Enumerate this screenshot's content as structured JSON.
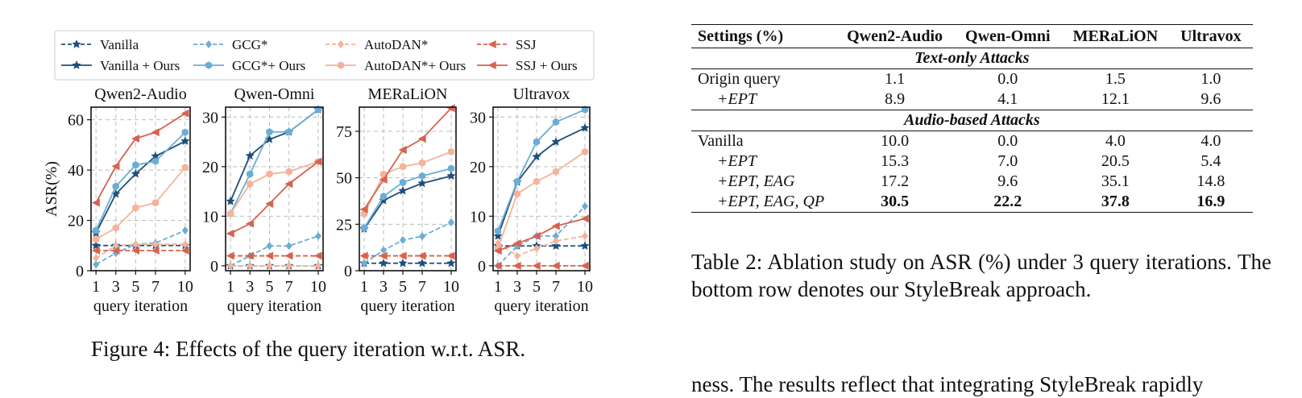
{
  "figure": {
    "caption": "Figure 4: Effects of the query iteration w.r.t. ASR.",
    "legend": [
      {
        "label": "Vanilla",
        "color": "#1f4e79",
        "dash": true,
        "marker": "star"
      },
      {
        "label": "Vanilla + Ours",
        "color": "#1f4e79",
        "dash": false,
        "marker": "star"
      },
      {
        "label": "GCG*",
        "color": "#6aaed6",
        "dash": true,
        "marker": "diamond"
      },
      {
        "label": "GCG*+ Ours",
        "color": "#6aaed6",
        "dash": false,
        "marker": "hex"
      },
      {
        "label": "AutoDAN*",
        "color": "#f4b39a",
        "dash": true,
        "marker": "diamond"
      },
      {
        "label": "AutoDAN*+ Ours",
        "color": "#f4b39a",
        "dash": false,
        "marker": "hex"
      },
      {
        "label": "SSJ",
        "color": "#d66350",
        "dash": true,
        "marker": "tri"
      },
      {
        "label": "SSJ + Ours",
        "color": "#d66350",
        "dash": false,
        "marker": "tri"
      }
    ]
  },
  "chart_data": [
    {
      "type": "line",
      "title": "Qwen2-Audio",
      "xlabel": "query iteration",
      "ylabel": "ASR(%)",
      "x": [
        1,
        3,
        5,
        7,
        10
      ],
      "ylim": [
        0,
        65
      ],
      "yticks": [
        0,
        20,
        40,
        60
      ],
      "grid": true,
      "series": [
        {
          "name": "Vanilla",
          "values": [
            10,
            10,
            10,
            10,
            10
          ]
        },
        {
          "name": "Vanilla + Ours",
          "values": [
            15,
            30.5,
            38.5,
            45.5,
            51.5
          ]
        },
        {
          "name": "GCG*",
          "values": [
            2.5,
            7,
            10.5,
            11,
            16
          ]
        },
        {
          "name": "GCG*+ Ours",
          "values": [
            16,
            33.5,
            42,
            43.5,
            55
          ]
        },
        {
          "name": "AutoDAN*",
          "values": [
            5,
            10,
            10.5,
            10.5,
            10.5
          ]
        },
        {
          "name": "AutoDAN*+ Ours",
          "values": [
            12.5,
            17,
            25,
            27,
            41
          ]
        },
        {
          "name": "SSJ",
          "values": [
            8,
            8,
            8,
            8,
            8
          ]
        },
        {
          "name": "SSJ + Ours",
          "values": [
            27,
            41.5,
            52.5,
            55,
            62.5
          ]
        }
      ]
    },
    {
      "type": "line",
      "title": "Qwen-Omni",
      "xlabel": "query iteration",
      "x": [
        1,
        3,
        5,
        7,
        10
      ],
      "ylim": [
        -1,
        32
      ],
      "yticks": [
        0,
        10,
        20,
        30
      ],
      "grid": true,
      "series": [
        {
          "name": "Vanilla",
          "values": [
            0,
            0,
            0,
            0,
            0
          ]
        },
        {
          "name": "Vanilla + Ours",
          "values": [
            13,
            22.2,
            25.5,
            27,
            31.5
          ]
        },
        {
          "name": "GCG*",
          "values": [
            0,
            2,
            4,
            4,
            6
          ]
        },
        {
          "name": "GCG*+ Ours",
          "values": [
            10.5,
            18.5,
            27,
            27,
            31.5
          ]
        },
        {
          "name": "AutoDAN*",
          "values": [
            0,
            0,
            0,
            0,
            0
          ]
        },
        {
          "name": "AutoDAN*+ Ours",
          "values": [
            10.5,
            16.5,
            18.5,
            19,
            21
          ]
        },
        {
          "name": "SSJ",
          "values": [
            2,
            2,
            2,
            2,
            2
          ]
        },
        {
          "name": "SSJ + Ours",
          "values": [
            6.5,
            8.5,
            12.5,
            16.5,
            21
          ]
        }
      ]
    },
    {
      "type": "line",
      "title": "MERaLiON",
      "xlabel": "query iteration",
      "x": [
        1,
        3,
        5,
        7,
        10
      ],
      "ylim": [
        0,
        88
      ],
      "yticks": [
        0,
        25,
        50,
        75
      ],
      "grid": true,
      "series": [
        {
          "name": "Vanilla",
          "values": [
            4,
            4,
            4,
            4,
            4
          ]
        },
        {
          "name": "Vanilla + Ours",
          "values": [
            22.5,
            37.8,
            43,
            47,
            51
          ]
        },
        {
          "name": "GCG*",
          "values": [
            4,
            11,
            16.5,
            18.5,
            26
          ]
        },
        {
          "name": "GCG*+ Ours",
          "values": [
            23,
            40,
            47.5,
            51,
            55
          ]
        },
        {
          "name": "AutoDAN*",
          "values": [
            8,
            8,
            8,
            8,
            8
          ]
        },
        {
          "name": "AutoDAN*+ Ours",
          "values": [
            30.5,
            52,
            56,
            58,
            64
          ]
        },
        {
          "name": "SSJ",
          "values": [
            8,
            8,
            8,
            8,
            8
          ]
        },
        {
          "name": "SSJ + Ours",
          "values": [
            33,
            49,
            65,
            71,
            87.5
          ]
        }
      ]
    },
    {
      "type": "line",
      "title": "Ultravox",
      "xlabel": "query iteration",
      "x": [
        1,
        3,
        5,
        7,
        10
      ],
      "ylim": [
        -1,
        32
      ],
      "yticks": [
        0,
        10,
        20,
        30
      ],
      "grid": true,
      "series": [
        {
          "name": "Vanilla",
          "values": [
            4,
            4,
            4,
            4,
            4
          ]
        },
        {
          "name": "Vanilla + Ours",
          "values": [
            6,
            16.9,
            22,
            25,
            27.8
          ]
        },
        {
          "name": "GCG*",
          "values": [
            0,
            4,
            6,
            6,
            12
          ]
        },
        {
          "name": "GCG*+ Ours",
          "values": [
            7,
            17,
            25,
            29,
            31.5
          ]
        },
        {
          "name": "AutoDAN*",
          "values": [
            4.5,
            2,
            3.5,
            5,
            6
          ]
        },
        {
          "name": "AutoDAN*+ Ours",
          "values": [
            3.5,
            14.5,
            17,
            19,
            23
          ]
        },
        {
          "name": "SSJ",
          "values": [
            0,
            0,
            0,
            0,
            0
          ]
        },
        {
          "name": "SSJ + Ours",
          "values": [
            3,
            4.5,
            6,
            8,
            9.5
          ]
        }
      ]
    }
  ],
  "table": {
    "caption": "Table 2: Ablation study on ASR (%) under 3 query iterations. The bottom row denotes our StyleBreak approach.",
    "header": [
      "Settings (%)",
      "Qwen2-Audio",
      "Qwen-Omni",
      "MERaLiON",
      "Ultravox"
    ],
    "group1": "Text-only Attacks",
    "group2": "Audio-based Attacks",
    "rows": [
      {
        "label": "Origin query",
        "values": [
          "1.1",
          "0.0",
          "1.5",
          "1.0"
        ]
      },
      {
        "label": "+EPT",
        "values": [
          "8.9",
          "4.1",
          "12.1",
          "9.6"
        ]
      },
      {
        "label": "Vanilla",
        "values": [
          "10.0",
          "0.0",
          "4.0",
          "4.0"
        ]
      },
      {
        "label": "+EPT",
        "values": [
          "15.3",
          "7.0",
          "20.5",
          "5.4"
        ]
      },
      {
        "label": "+EPT, EAG",
        "values": [
          "17.2",
          "9.6",
          "35.1",
          "14.8"
        ]
      },
      {
        "label": "+EPT, EAG, QP",
        "values": [
          "30.5",
          "22.2",
          "37.8",
          "16.9"
        ]
      }
    ]
  },
  "body_text": "ness. The results reflect that integrating StyleBreak rapidly"
}
